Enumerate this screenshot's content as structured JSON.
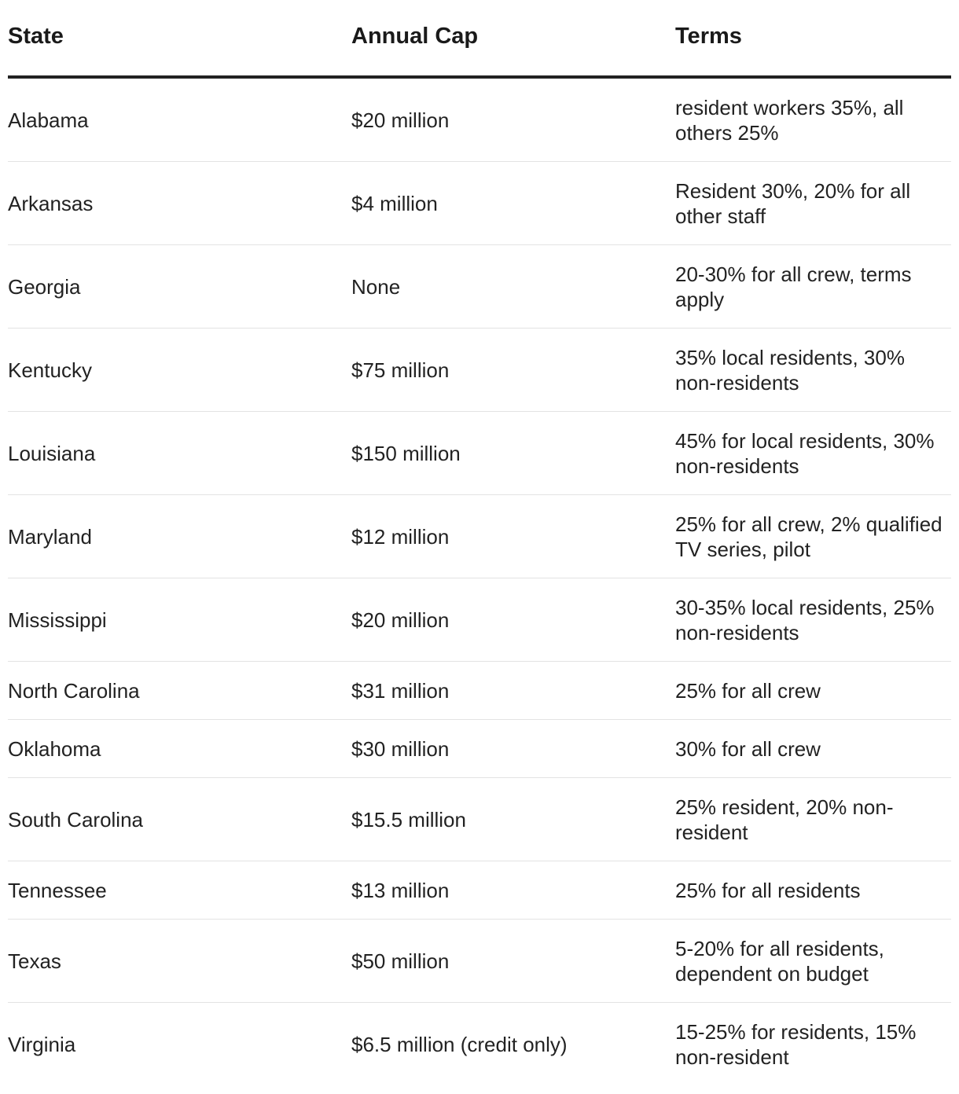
{
  "table": {
    "headers": [
      "State",
      "Annual Cap",
      "Terms"
    ],
    "rows": [
      {
        "state": "Alabama",
        "cap": "$20 million",
        "terms": "resident workers 35%, all others 25%"
      },
      {
        "state": "Arkansas",
        "cap": "$4 million",
        "terms": "Resident 30%, 20% for all other staff"
      },
      {
        "state": "Georgia",
        "cap": "None",
        "terms": "20-30% for all crew, terms apply"
      },
      {
        "state": "Kentucky",
        "cap": "$75 million",
        "terms": "35% local residents, 30% non-residents"
      },
      {
        "state": "Louisiana",
        "cap": "$150 million",
        "terms": "45% for local residents, 30% non-residents"
      },
      {
        "state": "Maryland",
        "cap": "$12 million",
        "terms": "25% for all crew, 2% qualified TV series, pilot"
      },
      {
        "state": "Mississippi",
        "cap": "$20 million",
        "terms": "30-35% local residents, 25% non-residents"
      },
      {
        "state": "North Carolina",
        "cap": "$31 million",
        "terms": "25% for all crew"
      },
      {
        "state": "Oklahoma",
        "cap": "$30 million",
        "terms": "30% for all crew"
      },
      {
        "state": "South Carolina",
        "cap": "$15.5 million",
        "terms": "25% resident, 20% non-resident"
      },
      {
        "state": "Tennessee",
        "cap": "$13 million",
        "terms": "25% for all residents"
      },
      {
        "state": "Texas",
        "cap": "$50 million",
        "terms": "5-20% for all residents, dependent on budget"
      },
      {
        "state": "Virginia",
        "cap": "$6.5 million (credit only)",
        "terms": "15-25% for residents, 15% non-resident"
      }
    ]
  }
}
